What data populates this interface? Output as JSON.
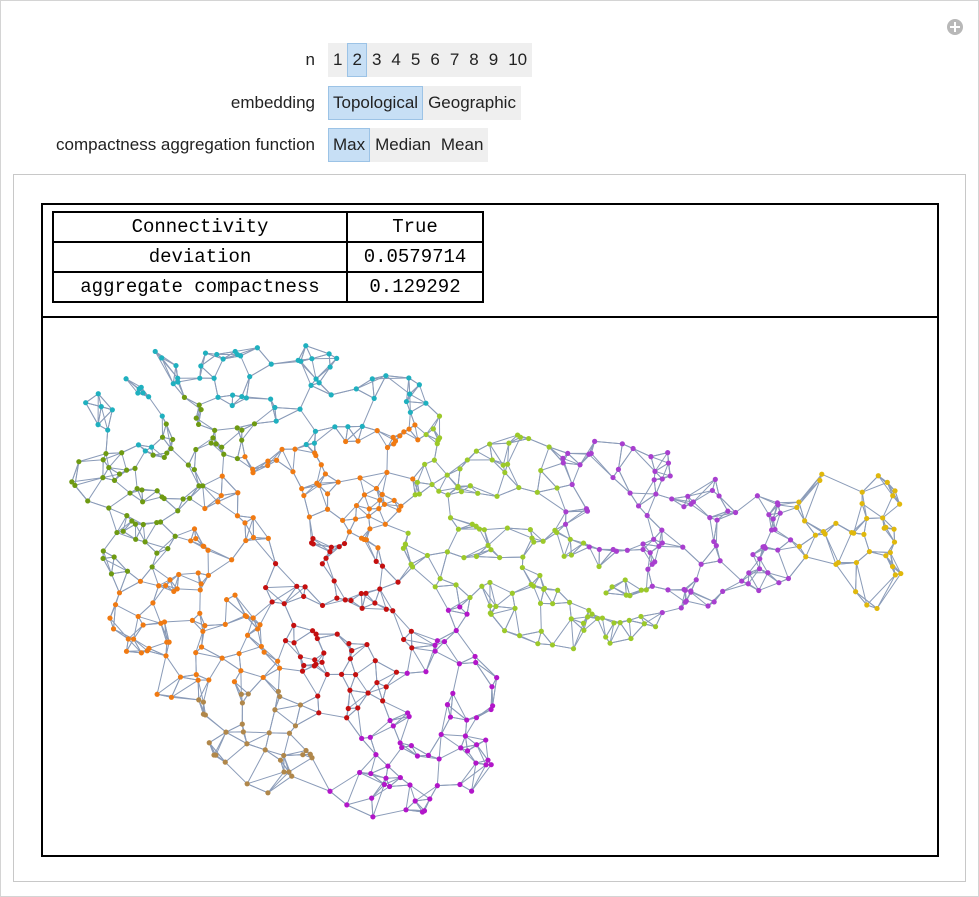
{
  "controls": [
    {
      "label": "n",
      "options": [
        "1",
        "2",
        "3",
        "4",
        "5",
        "6",
        "7",
        "8",
        "9",
        "10"
      ],
      "selected": "2"
    },
    {
      "label": "embedding",
      "options": [
        "Topological",
        "Geographic"
      ],
      "selected": "Topological"
    },
    {
      "label": "compactness aggregation function",
      "options": [
        "Max",
        "Median",
        "Mean"
      ],
      "selected": "Max"
    }
  ],
  "table": {
    "rows": [
      [
        "Connectivity",
        "True"
      ],
      [
        "deviation",
        "0.0579714"
      ],
      [
        "aggregate compactness",
        "0.129292"
      ]
    ]
  }
}
